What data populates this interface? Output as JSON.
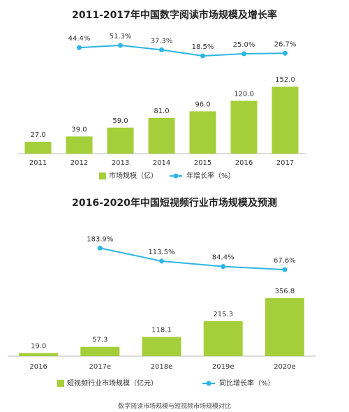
{
  "chart_data": [
    {
      "type": "combo",
      "title": "2011-2017年中国数字阅读市场规模及增长率",
      "categories": [
        "2011",
        "2012",
        "2013",
        "2014",
        "2015",
        "2016",
        "2017"
      ],
      "series": [
        {
          "name": "市场规模（亿）",
          "color": "#a5cf3a",
          "values": [
            27.0,
            39.0,
            59.0,
            81.0,
            96.0,
            120.0,
            152.0
          ],
          "value_labels": [
            "27.0",
            "39.0",
            "59.0",
            "81.0",
            "96.0",
            "120.0",
            "152.0"
          ]
        },
        {
          "name": "年增长率（%）",
          "color": "#2cb5e6",
          "axis": "y2",
          "values": [
            null,
            44.4,
            51.3,
            37.3,
            18.5,
            25.0,
            26.7
          ],
          "value_labels": [
            null,
            "44.4%",
            "51.3%",
            "37.3%",
            "18.5%",
            "25.0%",
            "26.7%"
          ]
        }
      ],
      "ylim": [
        0,
        160
      ],
      "y2lim": [
        0,
        60
      ]
    },
    {
      "type": "combo",
      "title": "2016-2020年中国短视频行业市场规模及预测",
      "categories": [
        "2016",
        "2017e",
        "2018e",
        "2019e",
        "2020e"
      ],
      "series": [
        {
          "name": "短视频行业市场规模（亿元）",
          "color": "#a5cf3a",
          "values": [
            19.0,
            57.3,
            118.1,
            215.3,
            356.8
          ],
          "value_labels": [
            "19.0",
            "57.3",
            "118.1",
            "215.3",
            "356.8"
          ]
        },
        {
          "name": "同比增长率（%）",
          "color": "#2cb5e6",
          "axis": "y2",
          "values": [
            null,
            183.9,
            113.5,
            84.4,
            67.6
          ],
          "value_labels": [
            null,
            "183.9%",
            "113.5%",
            "84.4%",
            "67.6%"
          ]
        }
      ],
      "ylim": [
        0,
        400
      ],
      "y2lim": [
        0,
        200
      ]
    }
  ],
  "caption": "数字阅读市场规模与短视频市场规模对比"
}
